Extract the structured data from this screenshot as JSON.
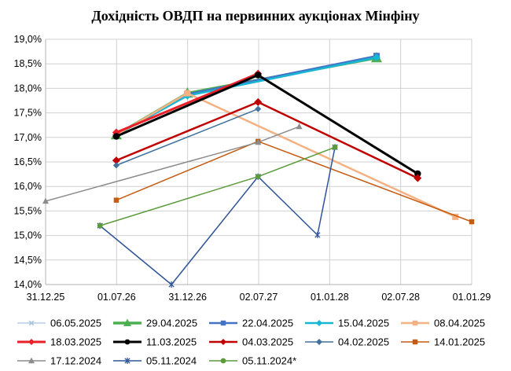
{
  "chart_data": {
    "type": "line",
    "title": "Дохідність ОВДП на первинних аукціонах Мінфіну",
    "xlabel": "",
    "ylabel": "",
    "x_ticks": [
      "31.12.25",
      "01.07.26",
      "31.12.26",
      "02.07.27",
      "01.01.28",
      "02.07.28",
      "01.01.29"
    ],
    "y_ticks": [
      "14,0%",
      "14,5%",
      "15,0%",
      "15,5%",
      "16,0%",
      "16,5%",
      "17,0%",
      "17,5%",
      "18,0%",
      "18,5%",
      "19,0%"
    ],
    "ylim": [
      14.0,
      19.0
    ],
    "grid": true,
    "legend_position": "bottom",
    "series": [
      {
        "name": "06.05.2025",
        "color": "#a6c4e0",
        "marker": "x",
        "line_width": 1.2,
        "points": [
          [
            "2026-07-01",
            17.05
          ],
          [
            "2026-12-31",
            17.9
          ],
          [
            "2028-05-01",
            18.6
          ]
        ]
      },
      {
        "name": "29.04.2025",
        "color": "#4caf50",
        "marker": "triangle",
        "line_width": 3.5,
        "points": [
          [
            "2026-07-01",
            17.05
          ],
          [
            "2026-12-31",
            17.9
          ],
          [
            "2028-05-01",
            18.62
          ]
        ]
      },
      {
        "name": "22.04.2025",
        "color": "#4472c4",
        "marker": "square",
        "line_width": 2.5,
        "points": [
          [
            "2026-07-01",
            17.05
          ],
          [
            "2026-12-31",
            17.88
          ],
          [
            "2028-05-01",
            18.66
          ]
        ]
      },
      {
        "name": "15.04.2025",
        "color": "#17b7d4",
        "marker": "diamond",
        "line_width": 2.5,
        "points": [
          [
            "2026-07-01",
            17.05
          ],
          [
            "2026-12-31",
            17.85
          ],
          [
            "2028-05-01",
            18.63
          ]
        ]
      },
      {
        "name": "08.04.2025",
        "color": "#f4b183",
        "marker": "square",
        "line_width": 2.5,
        "points": [
          [
            "2026-07-01",
            17.05
          ],
          [
            "2026-12-31",
            17.9
          ],
          [
            "2028-11-20",
            15.38
          ]
        ]
      },
      {
        "name": "18.03.2025",
        "color": "#e8202a",
        "marker": "diamond",
        "line_width": 3,
        "points": [
          [
            "2026-07-01",
            17.1
          ],
          [
            "2027-07-01",
            18.3
          ]
        ]
      },
      {
        "name": "11.03.2025",
        "color": "#000000",
        "marker": "circle",
        "line_width": 3,
        "points": [
          [
            "2026-07-01",
            17.02
          ],
          [
            "2027-07-01",
            18.27
          ],
          [
            "2028-08-15",
            16.26
          ]
        ]
      },
      {
        "name": "04.03.2025",
        "color": "#c00000",
        "marker": "diamond",
        "line_width": 2.5,
        "points": [
          [
            "2026-07-01",
            16.53
          ],
          [
            "2027-07-01",
            17.72
          ],
          [
            "2028-08-15",
            16.17
          ]
        ]
      },
      {
        "name": "04.02.2025",
        "color": "#41719c",
        "marker": "diamond",
        "line_width": 1.5,
        "points": [
          [
            "2026-07-01",
            16.43
          ],
          [
            "2027-07-01",
            17.58
          ]
        ]
      },
      {
        "name": "14.01.2025",
        "color": "#c55a11",
        "marker": "square",
        "line_width": 1.5,
        "points": [
          [
            "2026-07-01",
            15.72
          ],
          [
            "2027-07-01",
            16.92
          ],
          [
            "2029-01-01",
            15.28
          ]
        ]
      },
      {
        "name": "17.12.2024",
        "color": "#8c8c8c",
        "marker": "triangle",
        "line_width": 1.5,
        "points": [
          [
            "2025-12-31",
            15.7
          ],
          [
            "2027-07-01",
            16.9
          ],
          [
            "2027-10-15",
            17.22
          ]
        ]
      },
      {
        "name": "05.11.2024",
        "color": "#2f5597",
        "marker": "star",
        "line_width": 1.5,
        "points": [
          [
            "2026-05-20",
            15.2
          ],
          [
            "2026-11-20",
            14.0
          ],
          [
            "2027-07-01",
            16.2
          ],
          [
            "2027-12-01",
            15.01
          ],
          [
            "2028-01-15",
            16.8
          ]
        ]
      },
      {
        "name": "05.11.2024*",
        "color": "#5b9b3a",
        "marker": "circle",
        "line_width": 1.5,
        "points": [
          [
            "2026-05-20",
            15.2
          ],
          [
            "2027-07-01",
            16.2
          ],
          [
            "2028-01-15",
            16.8
          ]
        ]
      }
    ]
  }
}
